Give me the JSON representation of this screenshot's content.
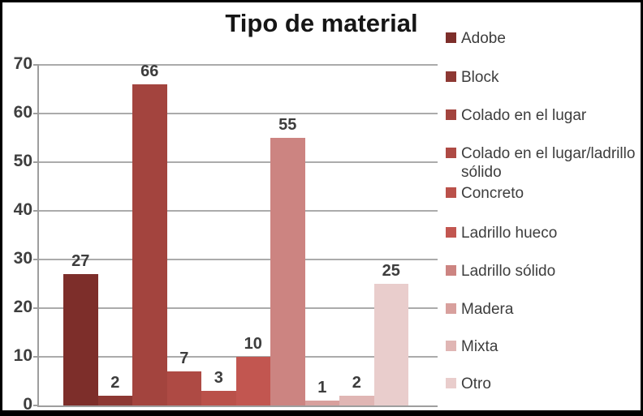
{
  "chart_data": {
    "type": "bar",
    "title": "Tipo de material",
    "categories": [
      "Adobe",
      "Block",
      "Colado en el lugar",
      "Colado en el lugar/ladrillo sólido",
      "Concreto",
      "Ladrillo hueco",
      "Ladrillo sólido",
      "Madera",
      "Mixta",
      "Otro"
    ],
    "values": [
      27,
      2,
      66,
      7,
      3,
      10,
      55,
      1,
      2,
      25
    ],
    "series_colors": [
      "#7D2E2A",
      "#8D3833",
      "#A3443E",
      "#AE4A44",
      "#BA514A",
      "#C25650",
      "#CC8481",
      "#D8A09D",
      "#E0B6B4",
      "#E9CDCC"
    ],
    "ylim": [
      0,
      70
    ],
    "yticks": [
      0,
      10,
      20,
      30,
      40,
      50,
      60,
      70
    ],
    "grid": true,
    "legend_position": "right",
    "data_labels": true,
    "colors": {
      "grid": "#ABABAB",
      "axis": "#9E9E9E",
      "tick_text": "#3E3E3E",
      "label_text": "#3D3D3D",
      "title_text": "#161616",
      "background": "#FFFFFF",
      "frame_border": "#000000"
    }
  }
}
